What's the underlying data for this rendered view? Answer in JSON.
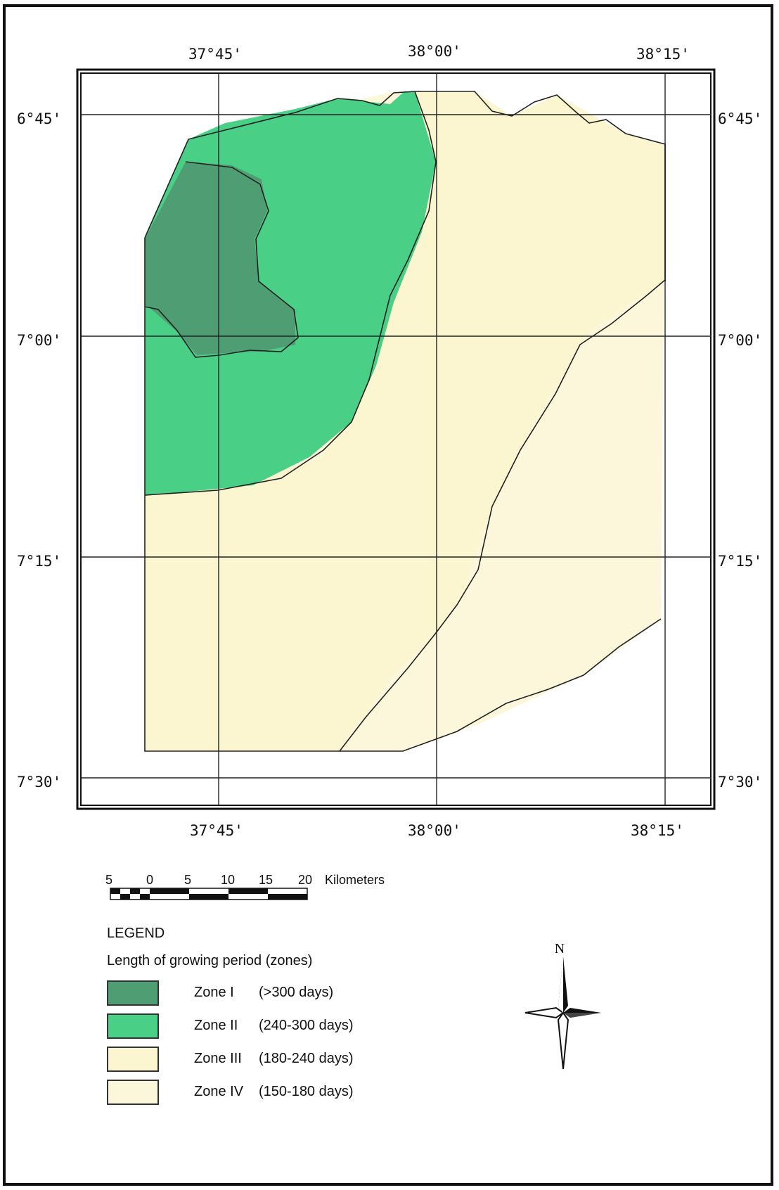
{
  "map": {
    "colors": {
      "zone_i": "#4f9d73",
      "zone_ii": "#49cf86",
      "zone_iii": "#fbf6cf",
      "zone_iv": "#fcf7da",
      "boundary": "#222222",
      "grid": "#222222"
    },
    "longitude_labels": [
      "37°45'",
      "38°00'",
      "38°15'"
    ],
    "latitude_labels": [
      "6°45'",
      "7°00'",
      "7°15'",
      "7°30'"
    ]
  },
  "scale_bar": {
    "labels": [
      "5",
      "0",
      "5",
      "10",
      "15",
      "20"
    ],
    "unit": "Kilometers"
  },
  "north_arrow": {
    "label": "N"
  },
  "legend": {
    "title": "LEGEND",
    "subtitle": "Length of growing period (zones)",
    "items": [
      {
        "zone": "Zone I",
        "days": "(>300 days)",
        "color": "#4f9d73"
      },
      {
        "zone": "Zone II",
        "days": "(240-300 days)",
        "color": "#49cf86"
      },
      {
        "zone": "Zone III",
        "days": "(180-240 days)",
        "color": "#fbf6cf"
      },
      {
        "zone": "Zone IV",
        "days": "(150-180 days)",
        "color": "#fcf7da"
      }
    ]
  }
}
